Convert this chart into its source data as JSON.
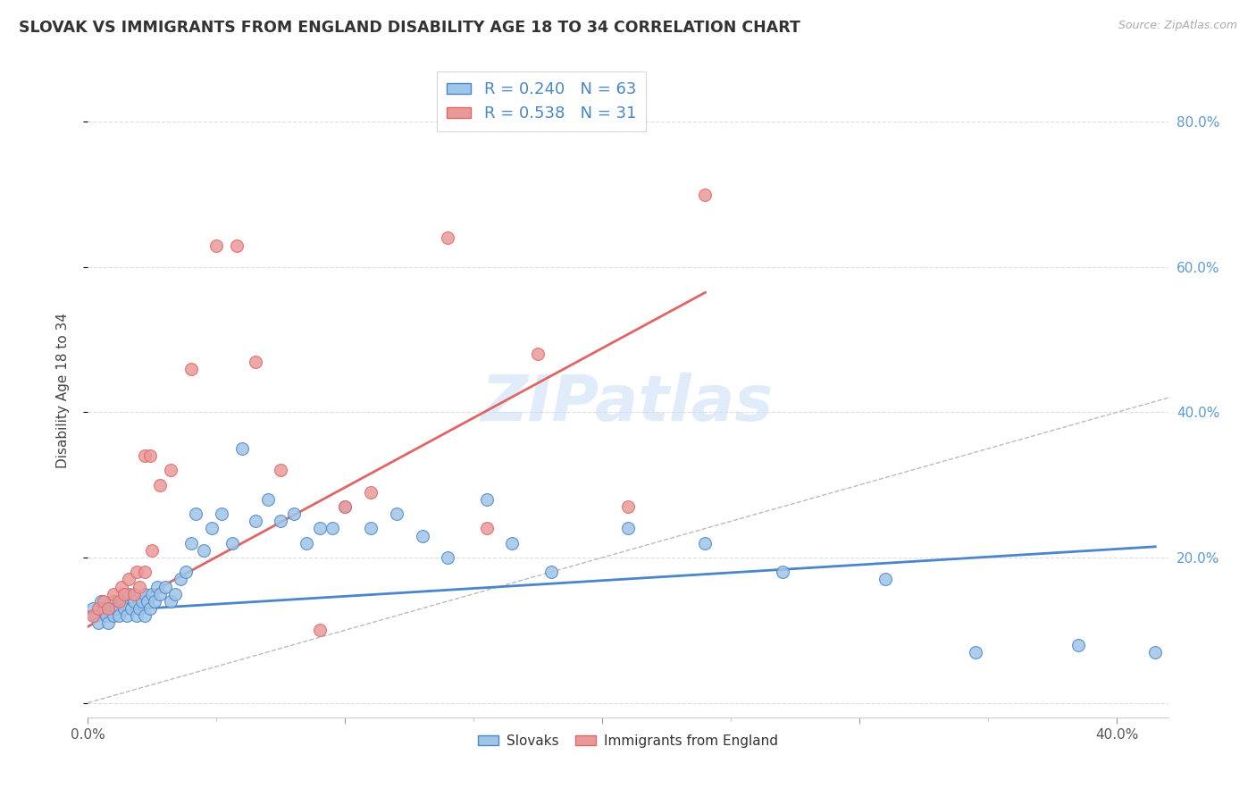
{
  "title": "SLOVAK VS IMMIGRANTS FROM ENGLAND DISABILITY AGE 18 TO 34 CORRELATION CHART",
  "source": "Source: ZipAtlas.com",
  "ylabel": "Disability Age 18 to 34",
  "xlim": [
    0.0,
    0.42
  ],
  "ylim": [
    -0.02,
    0.88
  ],
  "blue_color": "#9fc5e8",
  "pink_color": "#ea9999",
  "blue_line_color": "#4a86c8",
  "pink_line_color": "#e06666",
  "diagonal_color": "#bbbbbb",
  "watermark": "ZIPatlas",
  "blue_scatter_x": [
    0.002,
    0.003,
    0.004,
    0.005,
    0.006,
    0.007,
    0.008,
    0.009,
    0.01,
    0.01,
    0.011,
    0.012,
    0.013,
    0.014,
    0.015,
    0.016,
    0.017,
    0.018,
    0.019,
    0.02,
    0.021,
    0.022,
    0.022,
    0.023,
    0.024,
    0.025,
    0.026,
    0.027,
    0.028,
    0.03,
    0.032,
    0.034,
    0.036,
    0.038,
    0.04,
    0.042,
    0.045,
    0.048,
    0.052,
    0.056,
    0.06,
    0.065,
    0.07,
    0.075,
    0.08,
    0.085,
    0.09,
    0.095,
    0.1,
    0.11,
    0.12,
    0.13,
    0.14,
    0.155,
    0.165,
    0.18,
    0.21,
    0.24,
    0.27,
    0.31,
    0.345,
    0.385,
    0.415
  ],
  "blue_scatter_y": [
    0.13,
    0.12,
    0.11,
    0.14,
    0.13,
    0.12,
    0.11,
    0.13,
    0.12,
    0.14,
    0.13,
    0.12,
    0.14,
    0.13,
    0.12,
    0.15,
    0.13,
    0.14,
    0.12,
    0.13,
    0.14,
    0.12,
    0.15,
    0.14,
    0.13,
    0.15,
    0.14,
    0.16,
    0.15,
    0.16,
    0.14,
    0.15,
    0.17,
    0.18,
    0.22,
    0.26,
    0.21,
    0.24,
    0.26,
    0.22,
    0.35,
    0.25,
    0.28,
    0.25,
    0.26,
    0.22,
    0.24,
    0.24,
    0.27,
    0.24,
    0.26,
    0.23,
    0.2,
    0.28,
    0.22,
    0.18,
    0.24,
    0.22,
    0.18,
    0.17,
    0.07,
    0.08,
    0.07
  ],
  "pink_scatter_x": [
    0.002,
    0.004,
    0.006,
    0.008,
    0.01,
    0.012,
    0.013,
    0.014,
    0.016,
    0.018,
    0.019,
    0.02,
    0.022,
    0.022,
    0.024,
    0.025,
    0.028,
    0.032,
    0.04,
    0.05,
    0.058,
    0.065,
    0.075,
    0.09,
    0.1,
    0.11,
    0.14,
    0.155,
    0.175,
    0.21,
    0.24
  ],
  "pink_scatter_y": [
    0.12,
    0.13,
    0.14,
    0.13,
    0.15,
    0.14,
    0.16,
    0.15,
    0.17,
    0.15,
    0.18,
    0.16,
    0.18,
    0.34,
    0.34,
    0.21,
    0.3,
    0.32,
    0.46,
    0.63,
    0.63,
    0.47,
    0.32,
    0.1,
    0.27,
    0.29,
    0.64,
    0.24,
    0.48,
    0.27,
    0.7
  ],
  "blue_trend_x": [
    0.0,
    0.415
  ],
  "blue_trend_y": [
    0.125,
    0.215
  ],
  "pink_trend_x": [
    0.0,
    0.24
  ],
  "pink_trend_y": [
    0.105,
    0.565
  ]
}
